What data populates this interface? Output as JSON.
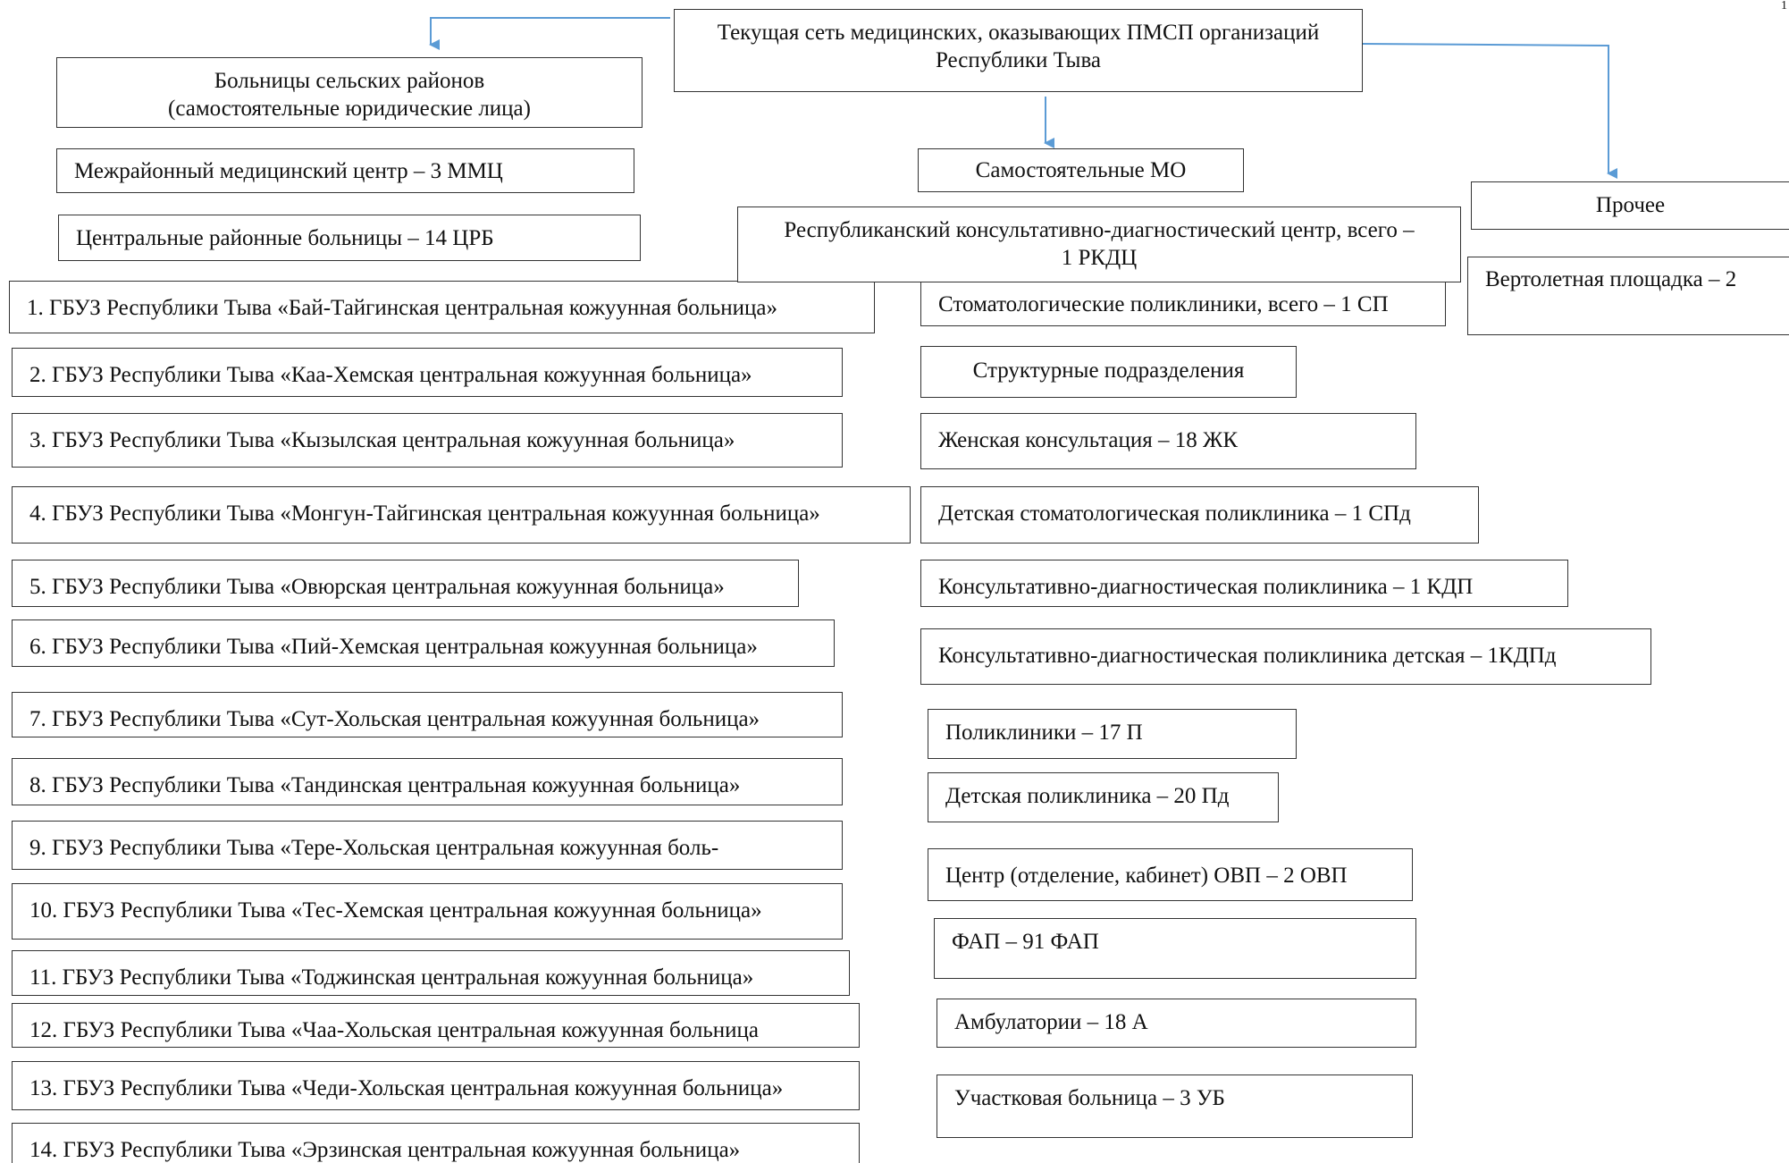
{
  "colors": {
    "arrow": "#5b9bd5",
    "border": "#333333",
    "text": "#111111"
  },
  "root": {
    "line1": "Текущая сеть медицинских, оказывающих ПМСП организаций",
    "line2": "Республики Тыва"
  },
  "rural": {
    "header": {
      "line1": "Больницы сельских районов",
      "line2": "(самостоятельные юридические лица)"
    },
    "mmc": "Межрайонный медицинский центр – 3 ММЦ",
    "crb": "Центральные районные больницы – 14 ЦРБ",
    "hospitals": [
      "1. ГБУЗ Республики Тыва «Бай-Тайгинская центральная кожуунная больница»",
      "2. ГБУЗ Республики Тыва «Каа-Хемская центральная кожуунная больница»",
      "3. ГБУЗ Республики Тыва «Кызылская центральная кожуунная больница»",
      "4. ГБУЗ Республики Тыва «Монгун-Тайгинская центральная кожуунная больница»",
      "5. ГБУЗ Республики Тыва «Овюрская центральная кожуунная больница»",
      "6. ГБУЗ Республики Тыва «Пий-Хемская центральная кожуунная больница»",
      "7. ГБУЗ Республики Тыва «Сут-Хольская центральная кожуунная больница»",
      "8. ГБУЗ Республики Тыва «Тандинская центральная кожуунная больница»",
      "9. ГБУЗ Республики Тыва «Тере-Хольская центральная кожуунная боль-",
      "10. ГБУЗ Республики Тыва «Тес-Хемская центральная кожуунная больница»",
      "11. ГБУЗ Республики Тыва «Тоджинская центральная кожуунная больница»",
      "12. ГБУЗ Республики Тыва «Чаа-Хольская центральная кожуунная больница",
      "13. ГБУЗ Республики Тыва «Чеди-Хольская центральная кожуунная больница»",
      "14. ГБУЗ Республики Тыва «Эрзинская центральная кожуунная больница»"
    ]
  },
  "independent": {
    "header": "Самостоятельные МО",
    "rkdc": {
      "line1": "Республиканский консультативно-диагностический центр, всего –",
      "line2": "1 РКДЦ"
    },
    "dental": "Стоматологические поликлиники, всего – 1 СП",
    "structural": "Структурные подразделения",
    "units": [
      "Женская консультация – 18 ЖК",
      "Детская стоматологическая поликлиника – 1 СПд",
      "Консультативно-диагностическая поликлиника – 1 КДП",
      "Консультативно-диагностическая поликлиника детская – 1КДПд",
      "Поликлиники – 17 П",
      "Детская поликлиника – 20 Пд",
      "Центр (отделение, кабинет) ОВП – 2 ОВП",
      "ФАП – 91 ФАП",
      "Амбулатории – 18 А",
      "Участковая больница – 3 УБ"
    ]
  },
  "other": {
    "header": "Прочее",
    "helipad": "Вертолетная площадка – 2"
  },
  "edge_mark": "1"
}
